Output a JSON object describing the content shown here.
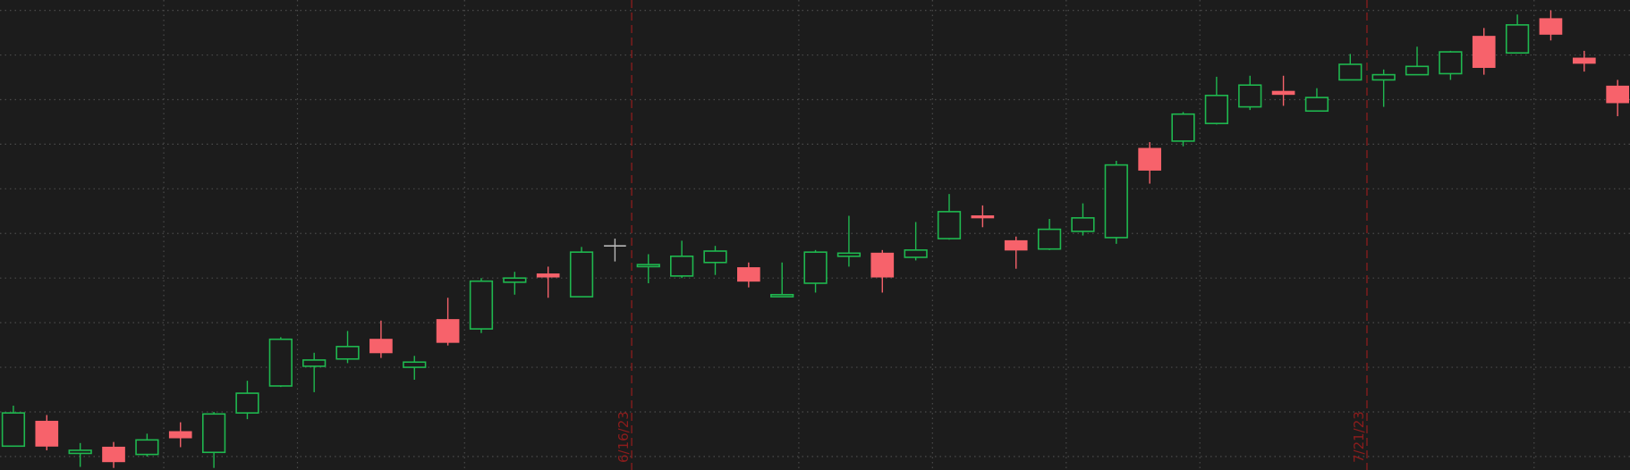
{
  "chart_data": {
    "type": "candlestick",
    "categories": [
      null,
      null,
      null,
      null,
      null,
      null,
      null,
      null,
      null,
      null,
      null,
      null,
      null,
      null,
      null,
      null,
      null,
      null,
      null,
      null,
      null,
      null,
      null,
      null,
      null,
      null,
      null,
      null,
      null,
      null,
      null,
      null,
      null,
      null,
      null,
      null,
      null,
      null,
      null,
      null,
      null,
      null,
      null,
      null,
      null,
      null,
      null,
      null,
      null
    ],
    "series": [
      {
        "open": [
          10,
          34,
          3,
          9,
          2,
          24,
          4,
          42,
          68,
          87,
          94,
          113,
          86,
          132,
          123,
          168,
          176,
          154,
          203,
          183,
          174,
          187,
          182,
          154,
          167,
          193,
          196,
          192,
          210,
          232,
          208,
          200,
          217,
          211,
          297,
          304,
          321,
          337,
          352,
          333,
          363,
          363,
          368,
          369,
          405,
          389,
          422,
          384,
          357
        ],
        "high": [
          49,
          40,
          13,
          14,
          22,
          33,
          43,
          73,
          115,
          100,
          121,
          131,
          97,
          153,
          172,
          178,
          183,
          202,
          210,
          195,
          208,
          203,
          187,
          187,
          199,
          232,
          199,
          226,
          253,
          242,
          212,
          229,
          244,
          285,
          303,
          332,
          366,
          367,
          367,
          355,
          388,
          373,
          395,
          391,
          413,
          426,
          430,
          391,
          363
        ],
        "low": [
          10,
          6,
          -10,
          -11,
          0,
          9,
          -11,
          36,
          67,
          62,
          90,
          95,
          74,
          107,
          119,
          156,
          153,
          154,
          188,
          167,
          172,
          175,
          163,
          154,
          158,
          183,
          158,
          189,
          209,
          221,
          181,
          199,
          213,
          205,
          263,
          299,
          320,
          334,
          338,
          333,
          363,
          337,
          368,
          363,
          368,
          389,
          401,
          371,
          328
        ],
        "close": [
          42,
          10,
          6,
          -5,
          16,
          18,
          41,
          61,
          113,
          93,
          106,
          100,
          91,
          110,
          169,
          172,
          173,
          197,
          203,
          185,
          193,
          198,
          169,
          156,
          197,
          196,
          173,
          199,
          236,
          230,
          199,
          219,
          230,
          281,
          276,
          330,
          348,
          358,
          349,
          346,
          378,
          368,
          376,
          390,
          375,
          416,
          407,
          379,
          341
        ]
      }
    ],
    "up_color": "#1fb84f",
    "down_color": "#f7626b",
    "flat_color": "#b8b8b8",
    "ylim": [
      -13,
      440
    ],
    "yticks": [
      0,
      43,
      86,
      129,
      172,
      215,
      258,
      301,
      344,
      387,
      430
    ],
    "xlim": [
      -0.4,
      48.37
    ],
    "xticks": [
      4.5,
      8.5,
      13.5,
      23.5,
      27.5,
      31.5,
      35.5,
      45.5
    ],
    "grid": true,
    "annotations": [
      {
        "label": "6/16/23",
        "x": 18.5,
        "color": "#8c1c1c"
      },
      {
        "label": "7/21/23",
        "x": 40.5,
        "color": "#8c1c1c"
      }
    ]
  }
}
